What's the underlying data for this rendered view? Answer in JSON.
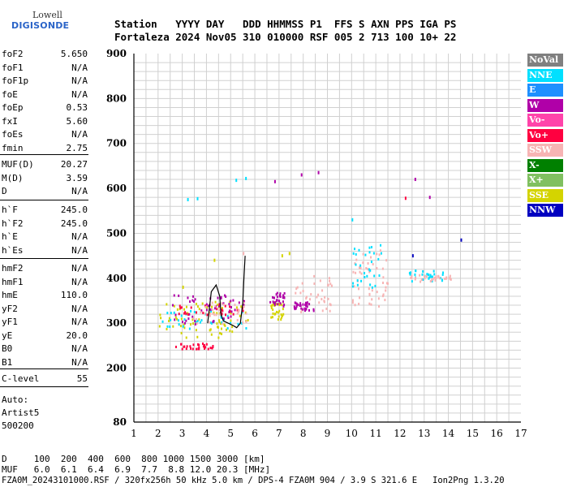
{
  "logo": {
    "line1": "Lowell",
    "line2": "DIGISONDE"
  },
  "header": {
    "line1": "Station   YYYY DAY   DDD HHMMSS P1  FFS S AXN PPS IGA PS",
    "line2": "Fortaleza 2024 Nov05 310 010000 RSF 005 2 713 100 10+ 22"
  },
  "params_group1": [
    {
      "name": "foF2",
      "value": "5.650"
    },
    {
      "name": "foF1",
      "value": "N/A"
    },
    {
      "name": "foF1p",
      "value": "N/A"
    },
    {
      "name": "foE",
      "value": "N/A"
    },
    {
      "name": "foEp",
      "value": "0.53"
    },
    {
      "name": "fxI",
      "value": "5.60"
    },
    {
      "name": "foEs",
      "value": "N/A"
    },
    {
      "name": "fmin",
      "value": "2.75"
    }
  ],
  "params_group2": [
    {
      "name": "MUF(D)",
      "value": "20.27"
    },
    {
      "name": "M(D)",
      "value": "3.59"
    },
    {
      "name": "D",
      "value": "N/A"
    }
  ],
  "params_group3": [
    {
      "name": "h`F",
      "value": "245.0"
    },
    {
      "name": "h`F2",
      "value": "245.0"
    },
    {
      "name": "h`E",
      "value": "N/A"
    },
    {
      "name": "h`Es",
      "value": "N/A"
    }
  ],
  "params_group4": [
    {
      "name": "hmF2",
      "value": "N/A"
    },
    {
      "name": "hmF1",
      "value": "N/A"
    },
    {
      "name": "hmE",
      "value": "110.0"
    },
    {
      "name": "yF2",
      "value": "N/A"
    },
    {
      "name": "yF1",
      "value": "N/A"
    },
    {
      "name": "yE",
      "value": "20.0"
    },
    {
      "name": "B0",
      "value": "N/A"
    },
    {
      "name": "B1",
      "value": "N/A"
    }
  ],
  "params_group5": [
    {
      "name": "C-level",
      "value": "55"
    }
  ],
  "auto": {
    "line1": "Auto:",
    "line2": "Artist5",
    "line3": "500200"
  },
  "footer": {
    "d_line": "D     100  200  400  600  800 1000 1500 3000 [km]",
    "muf_line": "MUF   6.0  6.1  6.4  6.9  7.7  8.8 12.0 20.3 [MHz]",
    "file_line": "FZA0M_20243101000.RSF / 320fx256h 50 kHz 5.0 km / DPS-4 FZA0M 904 / 3.9 S 321.6 E   Ion2Png 1.3.20"
  },
  "legend": [
    {
      "label": "NoVal",
      "bg": "#808080",
      "fg": "#ffffff"
    },
    {
      "label": "NNE",
      "bg": "#00e0ff",
      "fg": "#ffffff"
    },
    {
      "label": "E",
      "bg": "#1e90ff",
      "fg": "#ffffff"
    },
    {
      "label": "W",
      "bg": "#b000a8",
      "fg": "#ffffff"
    },
    {
      "label": "Vo-",
      "bg": "#ff44aa",
      "fg": "#ffffff"
    },
    {
      "label": "Vo+",
      "bg": "#ff0040",
      "fg": "#ffffff"
    },
    {
      "label": "SSW",
      "bg": "#f7b4b4",
      "fg": "#ffffff"
    },
    {
      "label": "X-",
      "bg": "#008000",
      "fg": "#ffffff"
    },
    {
      "label": "X+",
      "bg": "#80c060",
      "fg": "#ffffff"
    },
    {
      "label": "SSE",
      "bg": "#d4d400",
      "fg": "#ffffff"
    },
    {
      "label": "NNW",
      "bg": "#0000c0",
      "fg": "#ffffff"
    }
  ],
  "chart_data": {
    "type": "scatter",
    "title": "",
    "xlabel": "",
    "ylabel": "",
    "xlim": [
      1,
      17
    ],
    "ylim": [
      80,
      900
    ],
    "x_ticks": [
      "1",
      "2",
      "3",
      "4",
      "5",
      "6",
      "7",
      "8",
      "9",
      "10",
      "11",
      "12",
      "13",
      "14",
      "15",
      "16",
      "17"
    ],
    "y_ticks": [
      "80",
      "200",
      "300",
      "400",
      "500",
      "600",
      "700",
      "800",
      "900"
    ],
    "grid": true,
    "legend_position": "right",
    "clusters": [
      {
        "x": [
          2.0,
          5.7
        ],
        "y": [
          270,
          350
        ],
        "series": "SSE"
      },
      {
        "x": [
          2.0,
          5.7
        ],
        "y": [
          290,
          330
        ],
        "series": "NNE"
      },
      {
        "x": [
          2.5,
          5.6
        ],
        "y": [
          300,
          365
        ],
        "series": "W"
      },
      {
        "x": [
          2.8,
          5.5
        ],
        "y": [
          320,
          345
        ],
        "series": "Vo+"
      },
      {
        "x": [
          3.4,
          5.7
        ],
        "y": [
          300,
          350
        ],
        "series": "SSW"
      },
      {
        "x": [
          2.7,
          4.3
        ],
        "y": [
          245,
          258
        ],
        "series": "Vo+"
      },
      {
        "x": [
          6.6,
          7.2
        ],
        "y": [
          310,
          350
        ],
        "series": "SSE"
      },
      {
        "x": [
          6.6,
          7.2
        ],
        "y": [
          340,
          370
        ],
        "series": "W"
      },
      {
        "x": [
          7.5,
          9.2
        ],
        "y": [
          325,
          410
        ],
        "series": "SSW"
      },
      {
        "x": [
          7.6,
          8.5
        ],
        "y": [
          330,
          350
        ],
        "series": "W"
      },
      {
        "x": [
          10.0,
          11.5
        ],
        "y": [
          340,
          470
        ],
        "series": "SSW"
      },
      {
        "x": [
          10.0,
          11.2
        ],
        "y": [
          380,
          480
        ],
        "series": "NNE"
      },
      {
        "x": [
          12.3,
          13.8
        ],
        "y": [
          395,
          420
        ],
        "series": "NNE"
      },
      {
        "x": [
          12.4,
          14.2
        ],
        "y": [
          395,
          410
        ],
        "series": "SSW"
      }
    ],
    "scattered_points": [
      {
        "x": 6.8,
        "y": 615,
        "series": "W"
      },
      {
        "x": 7.9,
        "y": 630,
        "series": "W"
      },
      {
        "x": 8.6,
        "y": 635,
        "series": "W"
      },
      {
        "x": 5.2,
        "y": 618,
        "series": "NNE"
      },
      {
        "x": 5.6,
        "y": 622,
        "series": "NNE"
      },
      {
        "x": 3.6,
        "y": 577,
        "series": "NNE"
      },
      {
        "x": 3.2,
        "y": 575,
        "series": "NNE"
      },
      {
        "x": 12.6,
        "y": 620,
        "series": "W"
      },
      {
        "x": 13.2,
        "y": 580,
        "series": "W"
      },
      {
        "x": 12.2,
        "y": 578,
        "series": "Vo+"
      },
      {
        "x": 14.5,
        "y": 485,
        "series": "NNW"
      },
      {
        "x": 7.1,
        "y": 450,
        "series": "SSE"
      },
      {
        "x": 7.4,
        "y": 455,
        "series": "SSE"
      },
      {
        "x": 10.0,
        "y": 530,
        "series": "NNE"
      },
      {
        "x": 5.5,
        "y": 455,
        "series": "SSW"
      },
      {
        "x": 4.3,
        "y": 440,
        "series": "SSE"
      },
      {
        "x": 3.0,
        "y": 380,
        "series": "SSE"
      },
      {
        "x": 12.5,
        "y": 450,
        "series": "NNW"
      }
    ],
    "trace_curve": {
      "x": [
        4.05,
        4.2,
        4.4,
        4.55,
        4.6,
        4.7,
        4.9,
        5.1,
        5.25,
        5.4,
        5.5,
        5.55,
        5.6
      ],
      "y": [
        300,
        370,
        385,
        360,
        320,
        305,
        300,
        295,
        290,
        300,
        345,
        400,
        450
      ]
    }
  }
}
